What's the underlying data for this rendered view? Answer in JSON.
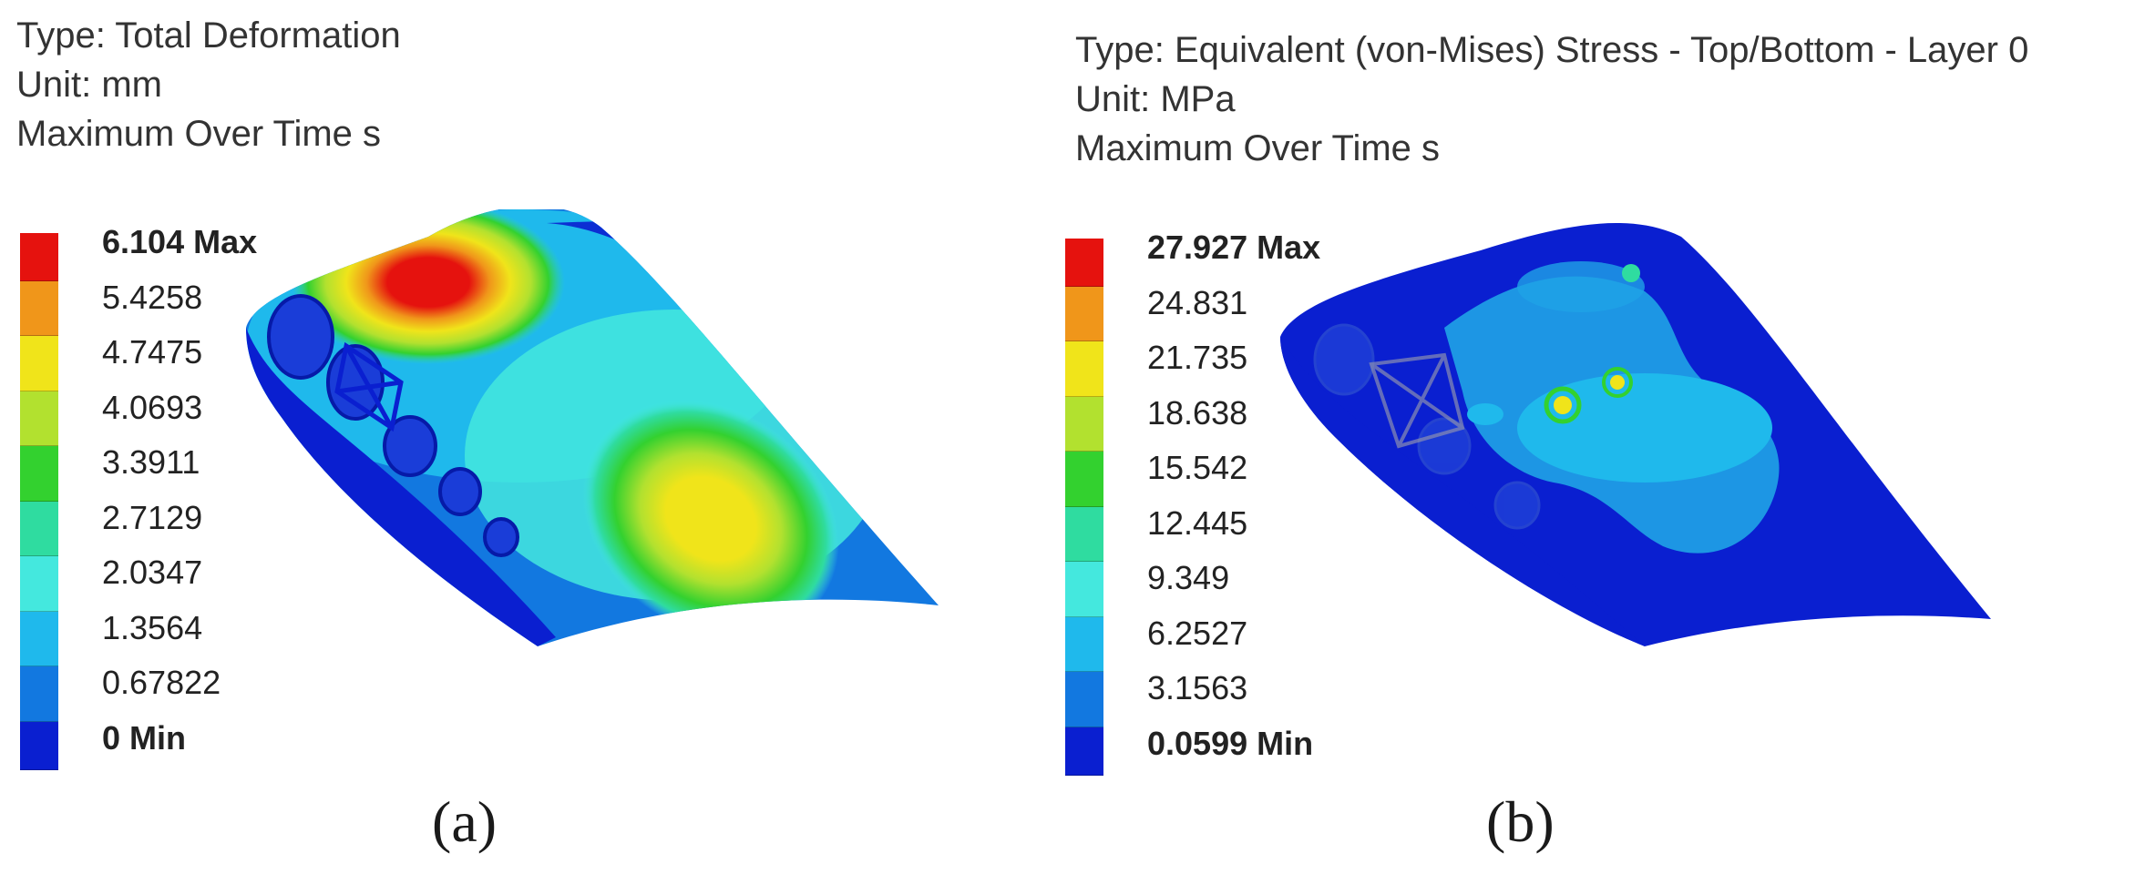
{
  "panels": [
    {
      "header": [
        "Type: Total Deformation",
        "Unit: mm",
        "Maximum Over Time s"
      ],
      "legend": {
        "labels": [
          "6.104 Max",
          "5.4258",
          "4.7475",
          "4.0693",
          "3.3911",
          "2.7129",
          "2.0347",
          "1.3564",
          "0.67822",
          "0 Min"
        ],
        "colors": [
          "#e5120e",
          "#f0961a",
          "#f0e41a",
          "#b2e12f",
          "#33d12f",
          "#2fdca0",
          "#44e8de",
          "#1fb9ec",
          "#1278e0",
          "#0a1fd0"
        ]
      },
      "caption": "(a)"
    },
    {
      "header": [
        "Type: Equivalent (von-Mises) Stress - Top/Bottom - Layer 0",
        "Unit: MPa",
        "Maximum Over Time s"
      ],
      "legend": {
        "labels": [
          "27.927 Max",
          "24.831",
          "21.735",
          "18.638",
          "15.542",
          "12.445",
          "9.349",
          "6.2527",
          "3.1563",
          "0.0599 Min"
        ],
        "colors": [
          "#e5120e",
          "#f0961a",
          "#f0e41a",
          "#b2e12f",
          "#33d12f",
          "#2fdca0",
          "#44e8de",
          "#1fb9ec",
          "#1278e0",
          "#0a1fd0"
        ]
      },
      "caption": "(b)"
    }
  ]
}
